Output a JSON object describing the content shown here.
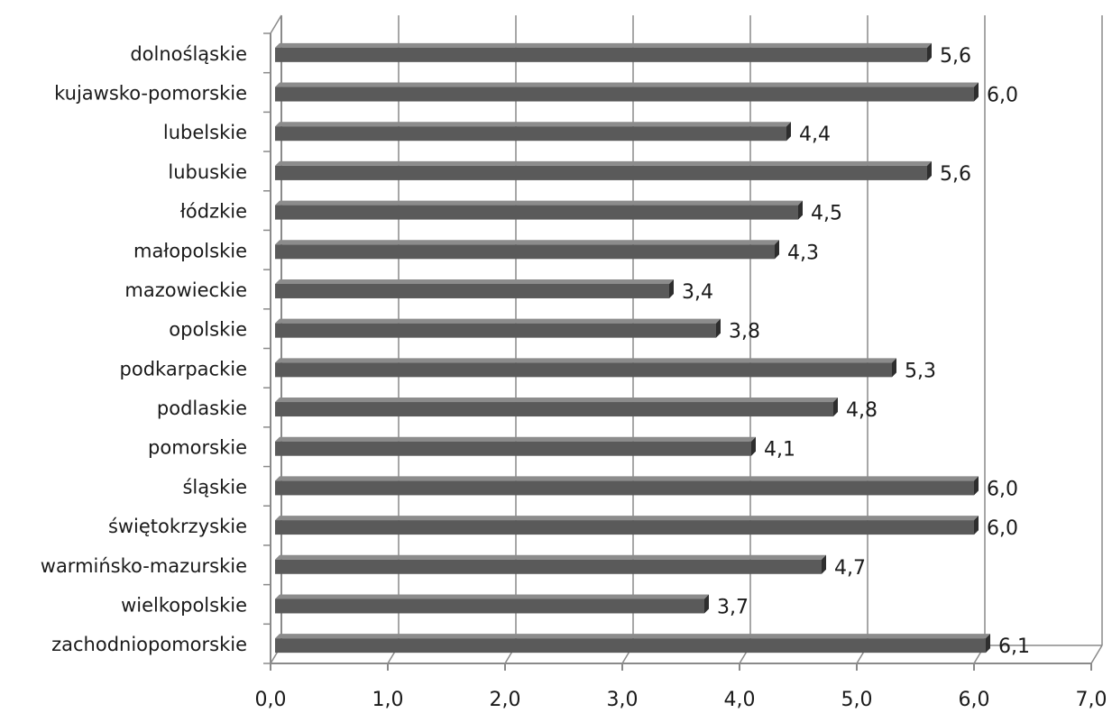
{
  "chart_data": {
    "type": "bar",
    "orientation": "horizontal",
    "style": "3d",
    "categories": [
      "dolnośląskie",
      "kujawsko-pomorskie",
      "lubelskie",
      "lubuskie",
      "łódzkie",
      "małopolskie",
      "mazowieckie",
      "opolskie",
      "podkarpackie",
      "podlaskie",
      "pomorskie",
      "śląskie",
      "świętokrzyskie",
      "warmińsko-mazurskie",
      "wielkopolskie",
      "zachodniopomorskie"
    ],
    "values": [
      5.6,
      6.0,
      4.4,
      5.6,
      4.5,
      4.3,
      3.4,
      3.8,
      5.3,
      4.8,
      4.1,
      6.0,
      6.0,
      4.7,
      3.7,
      6.1
    ],
    "value_labels": [
      "5,6",
      "6,0",
      "4,4",
      "5,6",
      "4,5",
      "4,3",
      "3,4",
      "3,8",
      "5,3",
      "4,8",
      "4,1",
      "6,0",
      "6,0",
      "4,7",
      "3,7",
      "6,1"
    ],
    "x_ticks": [
      "0,0",
      "1,0",
      "2,0",
      "3,0",
      "4,0",
      "5,0",
      "6,0",
      "7,0"
    ],
    "xlim": [
      0,
      7
    ],
    "grid": true,
    "legend": "none",
    "title": "",
    "xlabel": "",
    "ylabel": "",
    "colors": {
      "bar": "#5a5a5a",
      "bar_top": "#8c8c8c",
      "bar_end": "#2e2e2e",
      "grid": "#8a8a8a",
      "axis": "#8a8a8a"
    }
  }
}
